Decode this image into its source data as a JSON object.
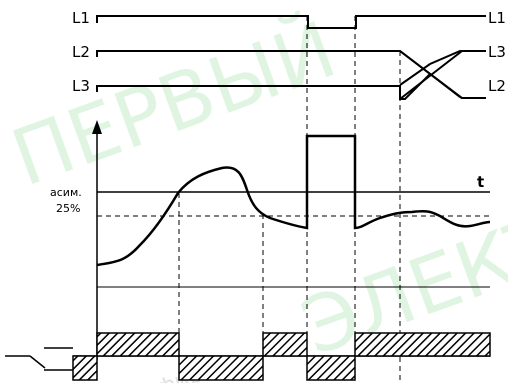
{
  "phase_labels": {
    "l1_left": "L1",
    "l2_left": "L2",
    "l3_left": "L3",
    "l1_right": "L1",
    "l2_right_top": "L3",
    "l3_right_bottom": "L2"
  },
  "threshold_label_line1": "асим.",
  "threshold_label_line2": "25%",
  "time_label": "t",
  "watermark": {
    "text_big": "ПЕРВЫЙ",
    "text_big2": "ЭЛЕКТРО",
    "text_small": "фирма"
  },
  "colors": {
    "line": "#000000",
    "watermark_green": "#c8eccb",
    "hatch": "#000000"
  }
}
